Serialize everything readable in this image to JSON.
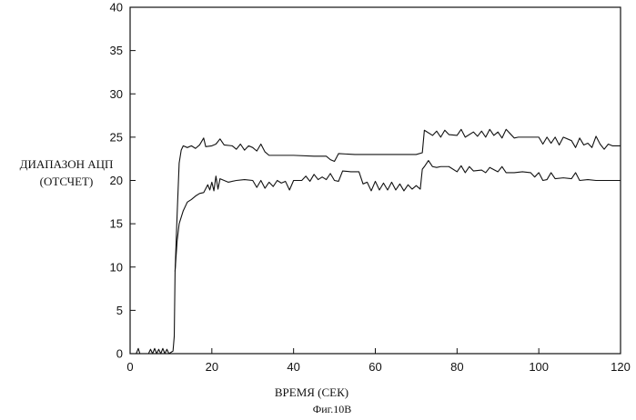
{
  "chart_data": {
    "type": "line",
    "title": "",
    "caption": "Фиг.10В",
    "xlabel": "ВРЕМЯ (СЕК)",
    "ylabel_line1": "ДИАПАЗОН АЦП",
    "ylabel_line2": "(ОТСЧЕТ)",
    "xlim": [
      0,
      120
    ],
    "ylim": [
      0,
      40
    ],
    "xticks": [
      0,
      20,
      40,
      60,
      80,
      100,
      120
    ],
    "yticks": [
      0,
      5,
      10,
      15,
      20,
      25,
      30,
      35,
      40
    ],
    "grid": false,
    "legend": "none",
    "colors": {
      "line": "#111111",
      "axis": "#111111"
    },
    "series": [
      {
        "points": [
          [
            0,
            0
          ],
          [
            1.5,
            0
          ],
          [
            2,
            0.6
          ],
          [
            2.4,
            0
          ],
          [
            4.5,
            0
          ],
          [
            5,
            0.5
          ],
          [
            5.5,
            0
          ],
          [
            6,
            0.6
          ],
          [
            6.5,
            0
          ],
          [
            7,
            0.5
          ],
          [
            7.5,
            0
          ],
          [
            8,
            0.6
          ],
          [
            8.5,
            0
          ],
          [
            9,
            0.5
          ],
          [
            9.5,
            0
          ],
          [
            10.5,
            0.3
          ],
          [
            10.8,
            2
          ],
          [
            11,
            9.5
          ],
          [
            11.5,
            16
          ],
          [
            12,
            22
          ],
          [
            12.5,
            23.5
          ],
          [
            13,
            24
          ],
          [
            14,
            23.8
          ],
          [
            15,
            24
          ],
          [
            16,
            23.7
          ],
          [
            17,
            24.1
          ],
          [
            18,
            24.9
          ],
          [
            18.5,
            23.9
          ],
          [
            20,
            24
          ],
          [
            21,
            24.2
          ],
          [
            22,
            24.8
          ],
          [
            23,
            24.1
          ],
          [
            25,
            24
          ],
          [
            26,
            23.6
          ],
          [
            27,
            24.2
          ],
          [
            28,
            23.5
          ],
          [
            29,
            24
          ],
          [
            30,
            23.8
          ],
          [
            31,
            23.4
          ],
          [
            32,
            24.2
          ],
          [
            33,
            23.3
          ],
          [
            34,
            22.9
          ],
          [
            40,
            22.9
          ],
          [
            45,
            22.8
          ],
          [
            48,
            22.8
          ],
          [
            49,
            22.4
          ],
          [
            50,
            22.2
          ],
          [
            51,
            23.1
          ],
          [
            55,
            23
          ],
          [
            60,
            23
          ],
          [
            65,
            23
          ],
          [
            70,
            23
          ],
          [
            71.5,
            23.2
          ],
          [
            72,
            25.8
          ],
          [
            74,
            25.2
          ],
          [
            75,
            25.7
          ],
          [
            76,
            25
          ],
          [
            77,
            25.8
          ],
          [
            78,
            25.3
          ],
          [
            80,
            25.2
          ],
          [
            81,
            25.9
          ],
          [
            82,
            25
          ],
          [
            84,
            25.6
          ],
          [
            85,
            25.1
          ],
          [
            86,
            25.7
          ],
          [
            87,
            25
          ],
          [
            88,
            25.9
          ],
          [
            89,
            25.2
          ],
          [
            90,
            25.6
          ],
          [
            91,
            24.9
          ],
          [
            92,
            25.9
          ],
          [
            93,
            25.4
          ],
          [
            94,
            24.9
          ],
          [
            95,
            25
          ],
          [
            100,
            25
          ],
          [
            101,
            24.2
          ],
          [
            102,
            25
          ],
          [
            103,
            24.3
          ],
          [
            104,
            25
          ],
          [
            105,
            24.1
          ],
          [
            106,
            25
          ],
          [
            108,
            24.6
          ],
          [
            109,
            23.8
          ],
          [
            110,
            24.9
          ],
          [
            111,
            24.1
          ],
          [
            112,
            24.3
          ],
          [
            113,
            23.8
          ],
          [
            114,
            25.1
          ],
          [
            115,
            24.2
          ],
          [
            116,
            23.6
          ],
          [
            117,
            24.2
          ],
          [
            118,
            24
          ],
          [
            120,
            24
          ]
        ]
      },
      {
        "points": [
          [
            11,
            9.5
          ],
          [
            11.5,
            13
          ],
          [
            12,
            15
          ],
          [
            13,
            16.5
          ],
          [
            14,
            17.5
          ],
          [
            15,
            17.8
          ],
          [
            16,
            18.2
          ],
          [
            17,
            18.5
          ],
          [
            18,
            18.6
          ],
          [
            19,
            19.5
          ],
          [
            19.5,
            18.9
          ],
          [
            20,
            19.8
          ],
          [
            20.5,
            18.8
          ],
          [
            21,
            20.5
          ],
          [
            21.5,
            19
          ],
          [
            22,
            20.2
          ],
          [
            23,
            20
          ],
          [
            24,
            19.8
          ],
          [
            26,
            20
          ],
          [
            28,
            20.1
          ],
          [
            30,
            20
          ],
          [
            31,
            19.2
          ],
          [
            32,
            20
          ],
          [
            33,
            19.1
          ],
          [
            34,
            19.8
          ],
          [
            35,
            19.3
          ],
          [
            36,
            20
          ],
          [
            37,
            19.7
          ],
          [
            38,
            19.9
          ],
          [
            39,
            18.9
          ],
          [
            40,
            20
          ],
          [
            42,
            20
          ],
          [
            43,
            20.5
          ],
          [
            44,
            19.9
          ],
          [
            45,
            20.7
          ],
          [
            46,
            20.1
          ],
          [
            47,
            20.4
          ],
          [
            48,
            20.1
          ],
          [
            49,
            20.8
          ],
          [
            50,
            20
          ],
          [
            51,
            19.9
          ],
          [
            52,
            21.1
          ],
          [
            54,
            21
          ],
          [
            56,
            21
          ],
          [
            57,
            19.6
          ],
          [
            58,
            19.8
          ],
          [
            59,
            18.8
          ],
          [
            60,
            19.9
          ],
          [
            61,
            18.9
          ],
          [
            62,
            19.7
          ],
          [
            63,
            18.9
          ],
          [
            64,
            19.8
          ],
          [
            65,
            18.9
          ],
          [
            66,
            19.6
          ],
          [
            67,
            18.8
          ],
          [
            68,
            19.5
          ],
          [
            69,
            19
          ],
          [
            70,
            19.4
          ],
          [
            71,
            19
          ],
          [
            71.5,
            21.3
          ],
          [
            72,
            21.6
          ],
          [
            73,
            22.3
          ],
          [
            74,
            21.6
          ],
          [
            75,
            21.5
          ],
          [
            76,
            21.6
          ],
          [
            78,
            21.6
          ],
          [
            80,
            21
          ],
          [
            81,
            21.7
          ],
          [
            82,
            20.9
          ],
          [
            83,
            21.6
          ],
          [
            84,
            21.1
          ],
          [
            86,
            21.2
          ],
          [
            87,
            20.9
          ],
          [
            88,
            21.5
          ],
          [
            90,
            21
          ],
          [
            91,
            21.6
          ],
          [
            92,
            20.9
          ],
          [
            94,
            20.9
          ],
          [
            96,
            21
          ],
          [
            98,
            20.9
          ],
          [
            99,
            20.4
          ],
          [
            100,
            20.9
          ],
          [
            101,
            20
          ],
          [
            102,
            20.1
          ],
          [
            103,
            20.9
          ],
          [
            104,
            20.2
          ],
          [
            106,
            20.3
          ],
          [
            108,
            20.2
          ],
          [
            109,
            20.9
          ],
          [
            110,
            20
          ],
          [
            112,
            20.1
          ],
          [
            114,
            20
          ],
          [
            116,
            20
          ],
          [
            118,
            20
          ],
          [
            120,
            20
          ]
        ]
      }
    ]
  }
}
